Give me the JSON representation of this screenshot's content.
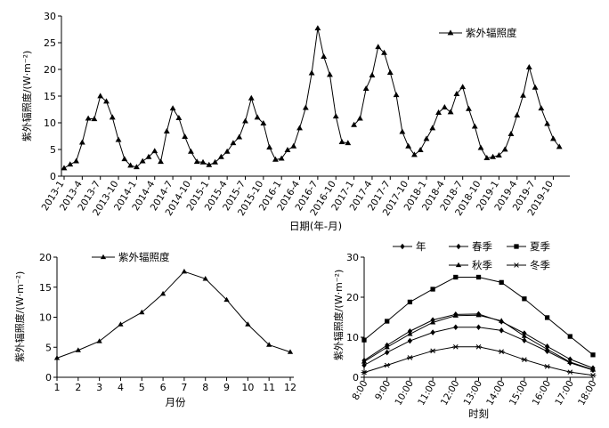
{
  "chart_data": [
    {
      "id": "top",
      "type": "line",
      "title": "",
      "xlabel": "日期(年-月)",
      "ylabel": "紫外辐照度/(W·m⁻²)",
      "ylim": [
        0,
        30
      ],
      "yticks": [
        0,
        5,
        10,
        15,
        20,
        25,
        30
      ],
      "grid": false,
      "legend": "top-right",
      "x_tick_labels": [
        "2013-1",
        "2013-4",
        "2013-7",
        "2013-10",
        "2014-1",
        "2014-4",
        "2014-7",
        "2014-10",
        "2015-1",
        "2015-4",
        "2015-7",
        "2015-10",
        "2016-1",
        "2016-4",
        "2016-7",
        "2016-10",
        "2017-1",
        "2017-4",
        "2017-7",
        "2017-10",
        "2018-1",
        "2018-4",
        "2018-7",
        "2018-10",
        "2019-1",
        "2019-4",
        "2019-7",
        "2019-10"
      ],
      "series": [
        {
          "name": "紫外辐照度",
          "marker": "triangle",
          "segments": [
            {
              "start_index": 0,
              "values": [
                1.5,
                2.2,
                2.8,
                6.3,
                10.8,
                10.7,
                15.0,
                14.0,
                11.0,
                6.8,
                3.2,
                2.0,
                1.7,
                2.8,
                3.6,
                4.7,
                2.7,
                8.4,
                12.7,
                10.9,
                7.4,
                4.6,
                2.7,
                2.6,
                2.1,
                2.6,
                3.6,
                4.6,
                6.2,
                7.3,
                10.3,
                14.6,
                11.0,
                9.9,
                5.4,
                3.1,
                3.3,
                4.9,
                5.6,
                9.0,
                12.8,
                19.3,
                27.7,
                22.4,
                19.0,
                11.2,
                6.4,
                6.2
              ]
            },
            {
              "start_index": 48,
              "values": [
                9.6,
                10.8,
                16.4,
                18.9,
                24.2,
                23.1,
                19.4,
                15.2,
                8.3,
                5.6,
                4.0,
                4.9,
                7.0,
                9.0,
                11.9,
                12.9,
                12.0,
                15.4,
                16.7,
                12.6,
                9.3,
                5.3,
                3.4,
                3.6,
                3.9,
                5.0,
                7.9,
                11.4,
                15.1,
                20.4,
                16.6,
                12.7,
                9.8,
                7.0,
                5.5
              ]
            }
          ]
        }
      ]
    },
    {
      "id": "monthly",
      "type": "line",
      "title": "",
      "xlabel": "月份",
      "ylabel": "紫外辐照度/(W·m⁻²)",
      "ylim": [
        0,
        20
      ],
      "yticks": [
        0,
        5,
        10,
        15,
        20
      ],
      "grid": false,
      "legend": "top-left",
      "x": [
        1,
        2,
        3,
        4,
        5,
        6,
        7,
        8,
        9,
        10,
        11,
        12
      ],
      "series": [
        {
          "name": "紫外辐照度",
          "marker": "triangle",
          "values": [
            3.2,
            4.5,
            6.0,
            8.8,
            10.8,
            13.9,
            17.6,
            16.4,
            12.9,
            8.8,
            5.4,
            4.2
          ]
        }
      ]
    },
    {
      "id": "hourly",
      "type": "line",
      "title": "",
      "xlabel": "时刻",
      "ylabel": "紫外辐照度/(W·m⁻²)",
      "ylim": [
        0,
        30
      ],
      "yticks": [
        0,
        10,
        20,
        30
      ],
      "grid": false,
      "legend": "top",
      "categories": [
        "8:00",
        "9:00",
        "10:00",
        "11:00",
        "12:00",
        "13:00",
        "14:00",
        "15:00",
        "16:00",
        "17:00",
        "18:00"
      ],
      "series": [
        {
          "name": "年",
          "marker": "diamond",
          "values": [
            3.0,
            6.2,
            9.1,
            11.2,
            12.5,
            12.5,
            11.7,
            9.2,
            6.5,
            3.6,
            1.8
          ]
        },
        {
          "name": "春季",
          "marker": "diamond",
          "values": [
            4.2,
            8.0,
            11.5,
            14.3,
            15.7,
            15.8,
            13.9,
            11.0,
            7.7,
            4.5,
            2.3
          ]
        },
        {
          "name": "夏季",
          "marker": "square",
          "values": [
            9.3,
            14.0,
            18.8,
            22.0,
            25.0,
            25.0,
            23.7,
            19.6,
            14.9,
            10.2,
            5.6
          ]
        },
        {
          "name": "秋季",
          "marker": "triangle",
          "values": [
            3.9,
            7.5,
            10.8,
            13.7,
            15.4,
            15.5,
            14.1,
            10.3,
            7.0,
            3.8,
            1.9
          ]
        },
        {
          "name": "冬季",
          "marker": "star",
          "values": [
            1.2,
            3.0,
            4.9,
            6.6,
            7.6,
            7.6,
            6.4,
            4.4,
            2.7,
            1.3,
            0.5
          ]
        }
      ]
    }
  ]
}
